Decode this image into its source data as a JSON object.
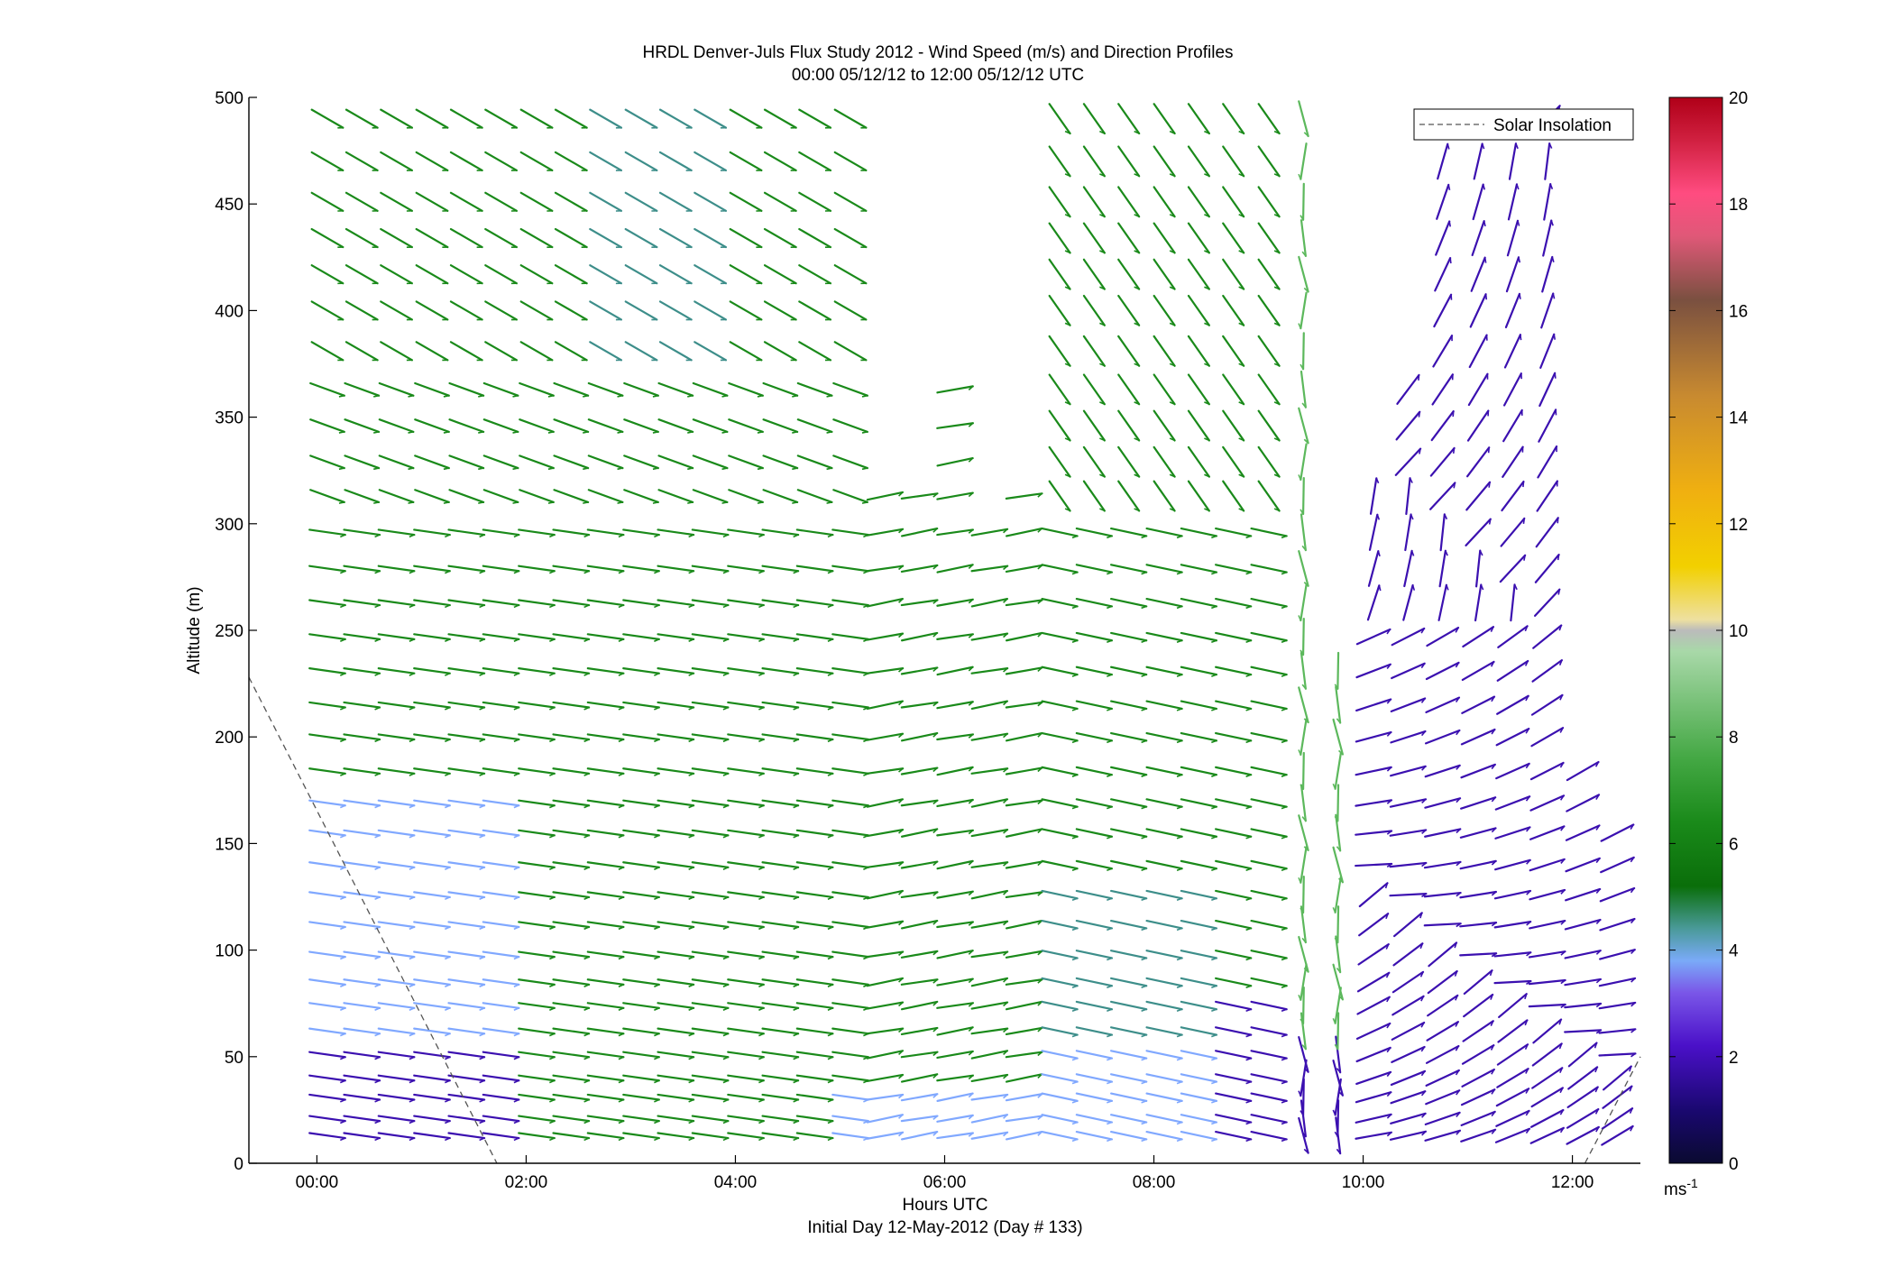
{
  "chart_data": {
    "type": "quiver",
    "title": "HRDL Denver-Juls Flux Study 2012 - Wind Speed (m/s) and Direction Profiles",
    "subtitle": "00:00 05/12/12 to 12:00 05/12/12  UTC",
    "xlabel": "Hours UTC",
    "xlabel2": "Initial Day 12-May-2012 (Day # 133)",
    "ylabel": "Altitude (m)",
    "xlim": [
      -0.65,
      12.65
    ],
    "ylim": [
      0,
      500
    ],
    "xticks": [
      0,
      2,
      4,
      6,
      8,
      10,
      12
    ],
    "xtick_labels": [
      "00:00",
      "02:00",
      "04:00",
      "06:00",
      "08:00",
      "10:00",
      "12:00"
    ],
    "yticks": [
      0,
      50,
      100,
      150,
      200,
      250,
      300,
      350,
      400,
      450,
      500
    ],
    "ytick_labels": [
      "0",
      "50",
      "100",
      "150",
      "200",
      "250",
      "300",
      "350",
      "400",
      "450",
      "500"
    ],
    "legend": {
      "label": "Solar Insolation",
      "position": "top-right"
    },
    "colorbar": {
      "range": [
        0,
        20
      ],
      "ticks": [
        0,
        2,
        4,
        6,
        8,
        10,
        12,
        14,
        16,
        18,
        20
      ],
      "tick_labels": [
        "0",
        "2",
        "4",
        "6",
        "8",
        "10",
        "12",
        "14",
        "16",
        "18",
        "20"
      ],
      "unit_label": "ms",
      "unit_exponent": "-1"
    },
    "solar_insolation": {
      "segments": [
        [
          [
            -0.65,
            228
          ],
          [
            1.72,
            0
          ]
        ],
        [
          [
            12.12,
            0
          ],
          [
            12.65,
            50
          ]
        ]
      ]
    },
    "colors": {
      "purple": "#3b10b0",
      "blue": "#80a8ff",
      "teal": "#3d8e8a",
      "green": "#1a8a1a",
      "light_green": "#5cb85c",
      "solar_line": "#555555"
    },
    "arrow_rows": {
      "altitudes": [
        13,
        21,
        31,
        40,
        51,
        62,
        74,
        85,
        98,
        112,
        126,
        140,
        155,
        169,
        184,
        200,
        215,
        231,
        247,
        263,
        279,
        296,
        313,
        329,
        346,
        363,
        381,
        400,
        417,
        434,
        451,
        470,
        490
      ],
      "columns": [
        {
          "t": 0.1,
          "top": 490
        },
        {
          "t": 0.43,
          "top": 490
        },
        {
          "t": 0.76,
          "top": 490
        },
        {
          "t": 1.1,
          "top": 490
        },
        {
          "t": 1.43,
          "top": 490
        },
        {
          "t": 1.76,
          "top": 490
        },
        {
          "t": 2.1,
          "top": 490
        },
        {
          "t": 2.43,
          "top": 490
        },
        {
          "t": 2.76,
          "top": 490
        },
        {
          "t": 3.1,
          "top": 490
        },
        {
          "t": 3.43,
          "top": 490
        },
        {
          "t": 3.76,
          "top": 490
        },
        {
          "t": 4.1,
          "top": 490
        },
        {
          "t": 4.43,
          "top": 490
        },
        {
          "t": 4.76,
          "top": 490
        },
        {
          "t": 5.1,
          "top": 490
        },
        {
          "t": 5.43,
          "top": 313
        },
        {
          "t": 5.76,
          "top": 313
        },
        {
          "t": 6.1,
          "top": 363
        },
        {
          "t": 6.43,
          "top": 296
        },
        {
          "t": 6.76,
          "top": 313
        },
        {
          "t": 7.1,
          "top": 490
        },
        {
          "t": 7.43,
          "top": 490
        },
        {
          "t": 7.76,
          "top": 490
        },
        {
          "t": 8.1,
          "top": 490
        },
        {
          "t": 8.43,
          "top": 490
        },
        {
          "t": 8.76,
          "top": 490
        },
        {
          "t": 9.1,
          "top": 490
        },
        {
          "t": 9.43,
          "top": 490
        },
        {
          "t": 9.76,
          "top": 231
        },
        {
          "t": 10.1,
          "top": 313
        },
        {
          "t": 10.43,
          "top": 363
        },
        {
          "t": 10.76,
          "top": 470
        },
        {
          "t": 11.1,
          "top": 470
        },
        {
          "t": 11.43,
          "top": 470
        },
        {
          "t": 11.76,
          "top": 490
        },
        {
          "t": 12.1,
          "top": 184
        },
        {
          "t": 12.43,
          "top": 155
        }
      ]
    }
  }
}
